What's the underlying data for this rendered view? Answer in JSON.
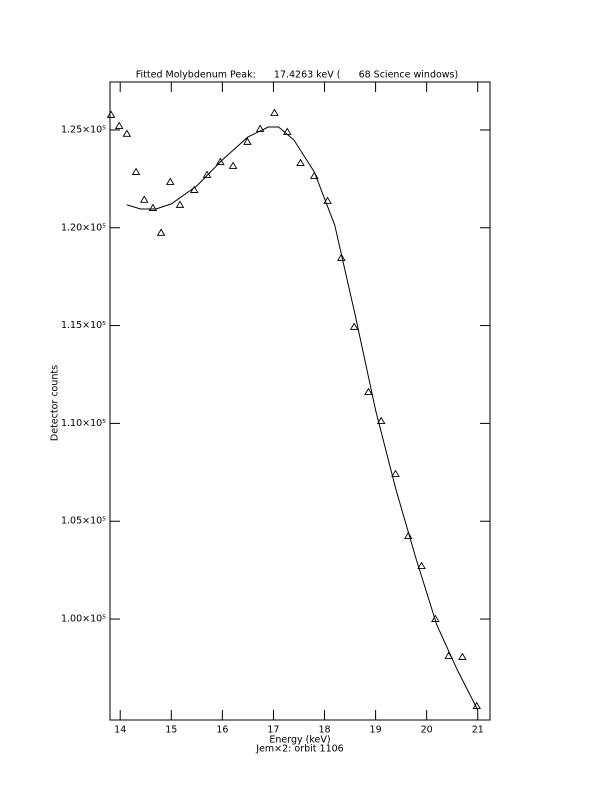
{
  "chart_data": {
    "type": "scatter",
    "title": "Fitted Molybdenum Peak:      17.4263 keV (      68 Science windows)",
    "x_label": "Energy (keV)",
    "subtitle": "Jem×2: orbit 1106",
    "y_label": "Detector counts",
    "xlim": [
      13.8,
      21.24
    ],
    "ylim": [
      94840,
      127450
    ],
    "xticks": [
      14,
      15,
      16,
      17,
      18,
      19,
      20,
      21
    ],
    "yticks": [
      {
        "value": 100000,
        "label": "1.00×10⁵"
      },
      {
        "value": 105000,
        "label": "1.05×10⁵"
      },
      {
        "value": 110000,
        "label": "1.10×10⁵"
      },
      {
        "value": 115000,
        "label": "1.15×10⁵"
      },
      {
        "value": 120000,
        "label": "1.20×10⁵"
      },
      {
        "value": 125000,
        "label": "1.25×10⁵"
      }
    ],
    "color": "#000000",
    "series": [
      {
        "style": "marker",
        "marker": "triangle",
        "x": [
          13.82,
          13.98,
          14.13,
          14.31,
          14.47,
          14.64,
          14.8,
          14.98,
          15.17,
          15.45,
          15.7,
          15.96,
          16.21,
          16.49,
          16.74,
          17.02,
          17.27,
          17.53,
          17.8,
          18.06,
          18.33,
          18.58,
          18.86,
          19.11,
          19.39,
          19.64,
          19.9,
          20.17,
          20.43,
          20.7,
          20.98
        ],
        "values": [
          125770,
          125200,
          124800,
          122850,
          121430,
          121010,
          119740,
          122340,
          121170,
          121930,
          122700,
          123360,
          123160,
          124390,
          125050,
          125870,
          124900,
          123310,
          122650,
          121370,
          118460,
          114930,
          111600,
          110120,
          107410,
          104240,
          102710,
          100000,
          98110,
          98060,
          95550
        ]
      },
      {
        "style": "line",
        "x": [
          14.13,
          14.4,
          14.7,
          15.0,
          15.5,
          16.0,
          16.5,
          16.9,
          17.1,
          17.4,
          17.8,
          18.2,
          18.6,
          19.0,
          19.4,
          19.8,
          20.2,
          20.6,
          21.0
        ],
        "values": [
          121170,
          120960,
          120960,
          121220,
          122140,
          123470,
          124640,
          125150,
          125150,
          124490,
          122850,
          120140,
          115540,
          110680,
          106600,
          103020,
          99690,
          97400,
          95350
        ]
      }
    ]
  }
}
